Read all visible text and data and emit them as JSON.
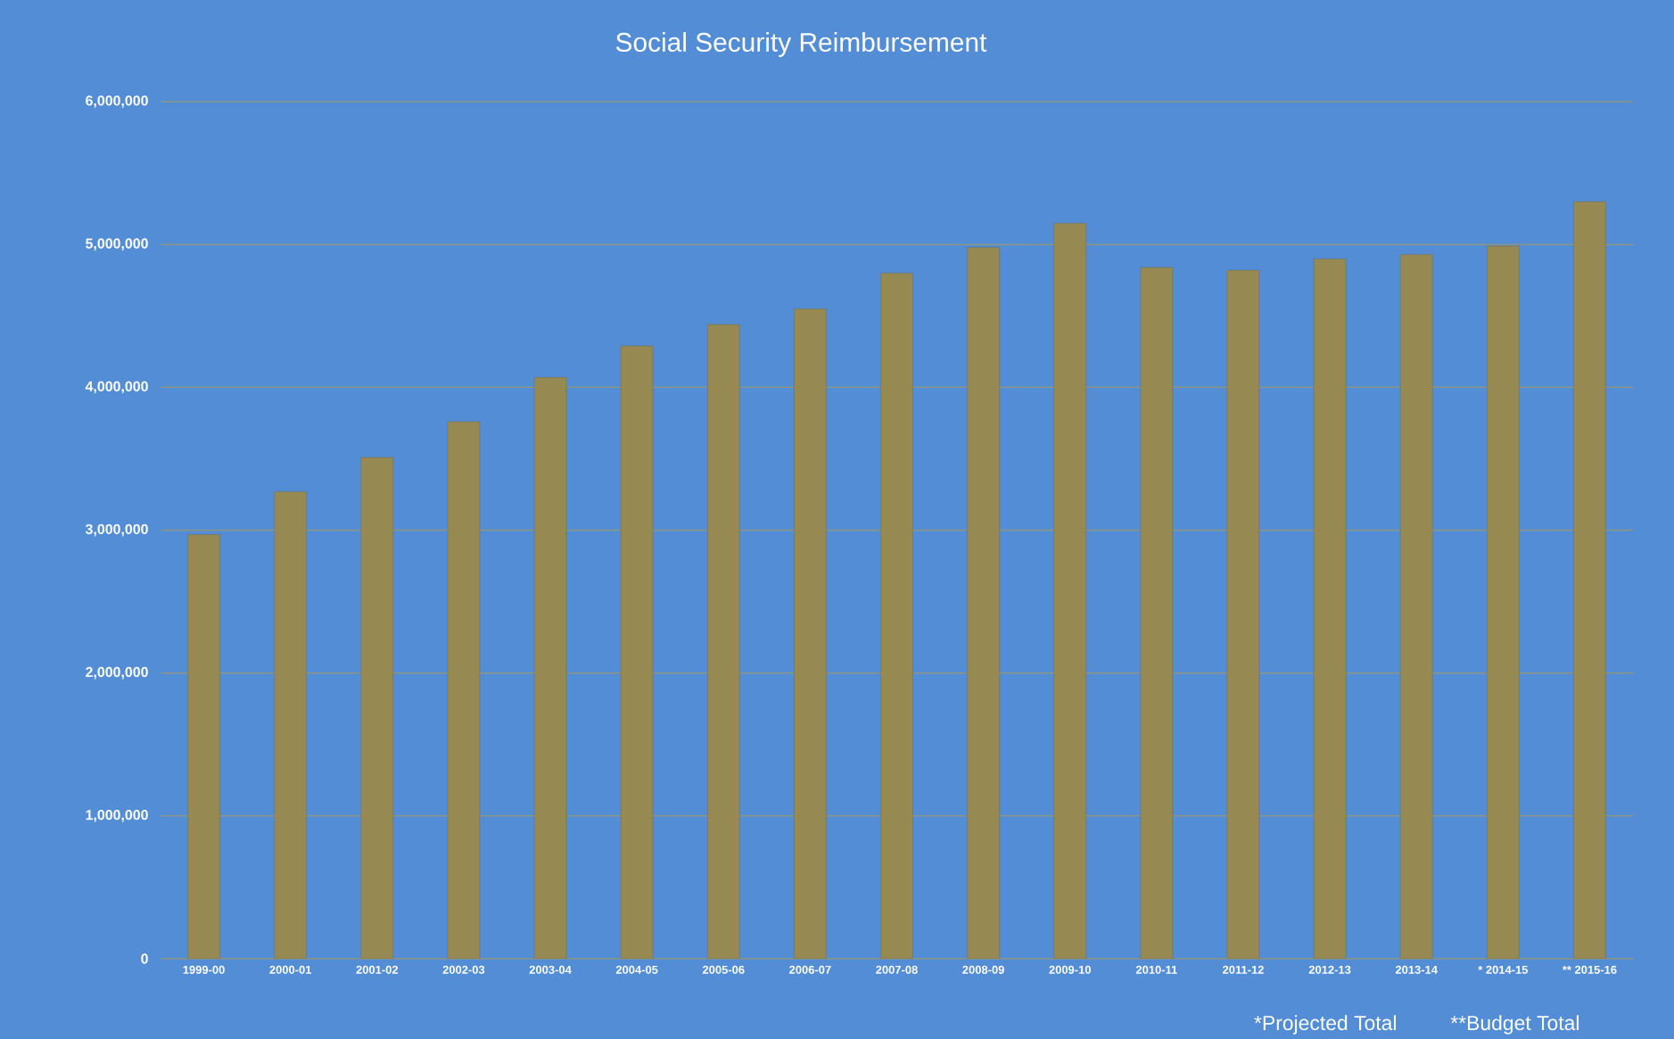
{
  "chart_data": {
    "type": "bar",
    "title": "Social Security Reimbursement",
    "categories": [
      "1999-00",
      "2000-01",
      "2001-02",
      "2002-03",
      "2003-04",
      "2004-05",
      "2005-06",
      "2006-07",
      "2007-08",
      "2008-09",
      "2009-10",
      "2010-11",
      "2011-12",
      "2012-13",
      "2013-14",
      "* 2014-15",
      "** 2015-16"
    ],
    "values": [
      2970000,
      3270000,
      3510000,
      3760000,
      4070000,
      4290000,
      4440000,
      4550000,
      4800000,
      4980000,
      5150000,
      4840000,
      4820000,
      4900000,
      4930000,
      4990000,
      5300000
    ],
    "color": "#968a52",
    "ylim": [
      0,
      6000000
    ],
    "yticks": [
      {
        "value": 0,
        "label": "0"
      },
      {
        "value": 1000000,
        "label": "1,000,000"
      },
      {
        "value": 2000000,
        "label": "2,000,000"
      },
      {
        "value": 3000000,
        "label": "3,000,000"
      },
      {
        "value": 4000000,
        "label": "4,000,000"
      },
      {
        "value": 5000000,
        "label": "5,000,000"
      },
      {
        "value": 6000000,
        "label": "6,000,000"
      }
    ],
    "grid": true,
    "annotations": [
      "*Projected Total",
      "**Budget Total"
    ]
  }
}
